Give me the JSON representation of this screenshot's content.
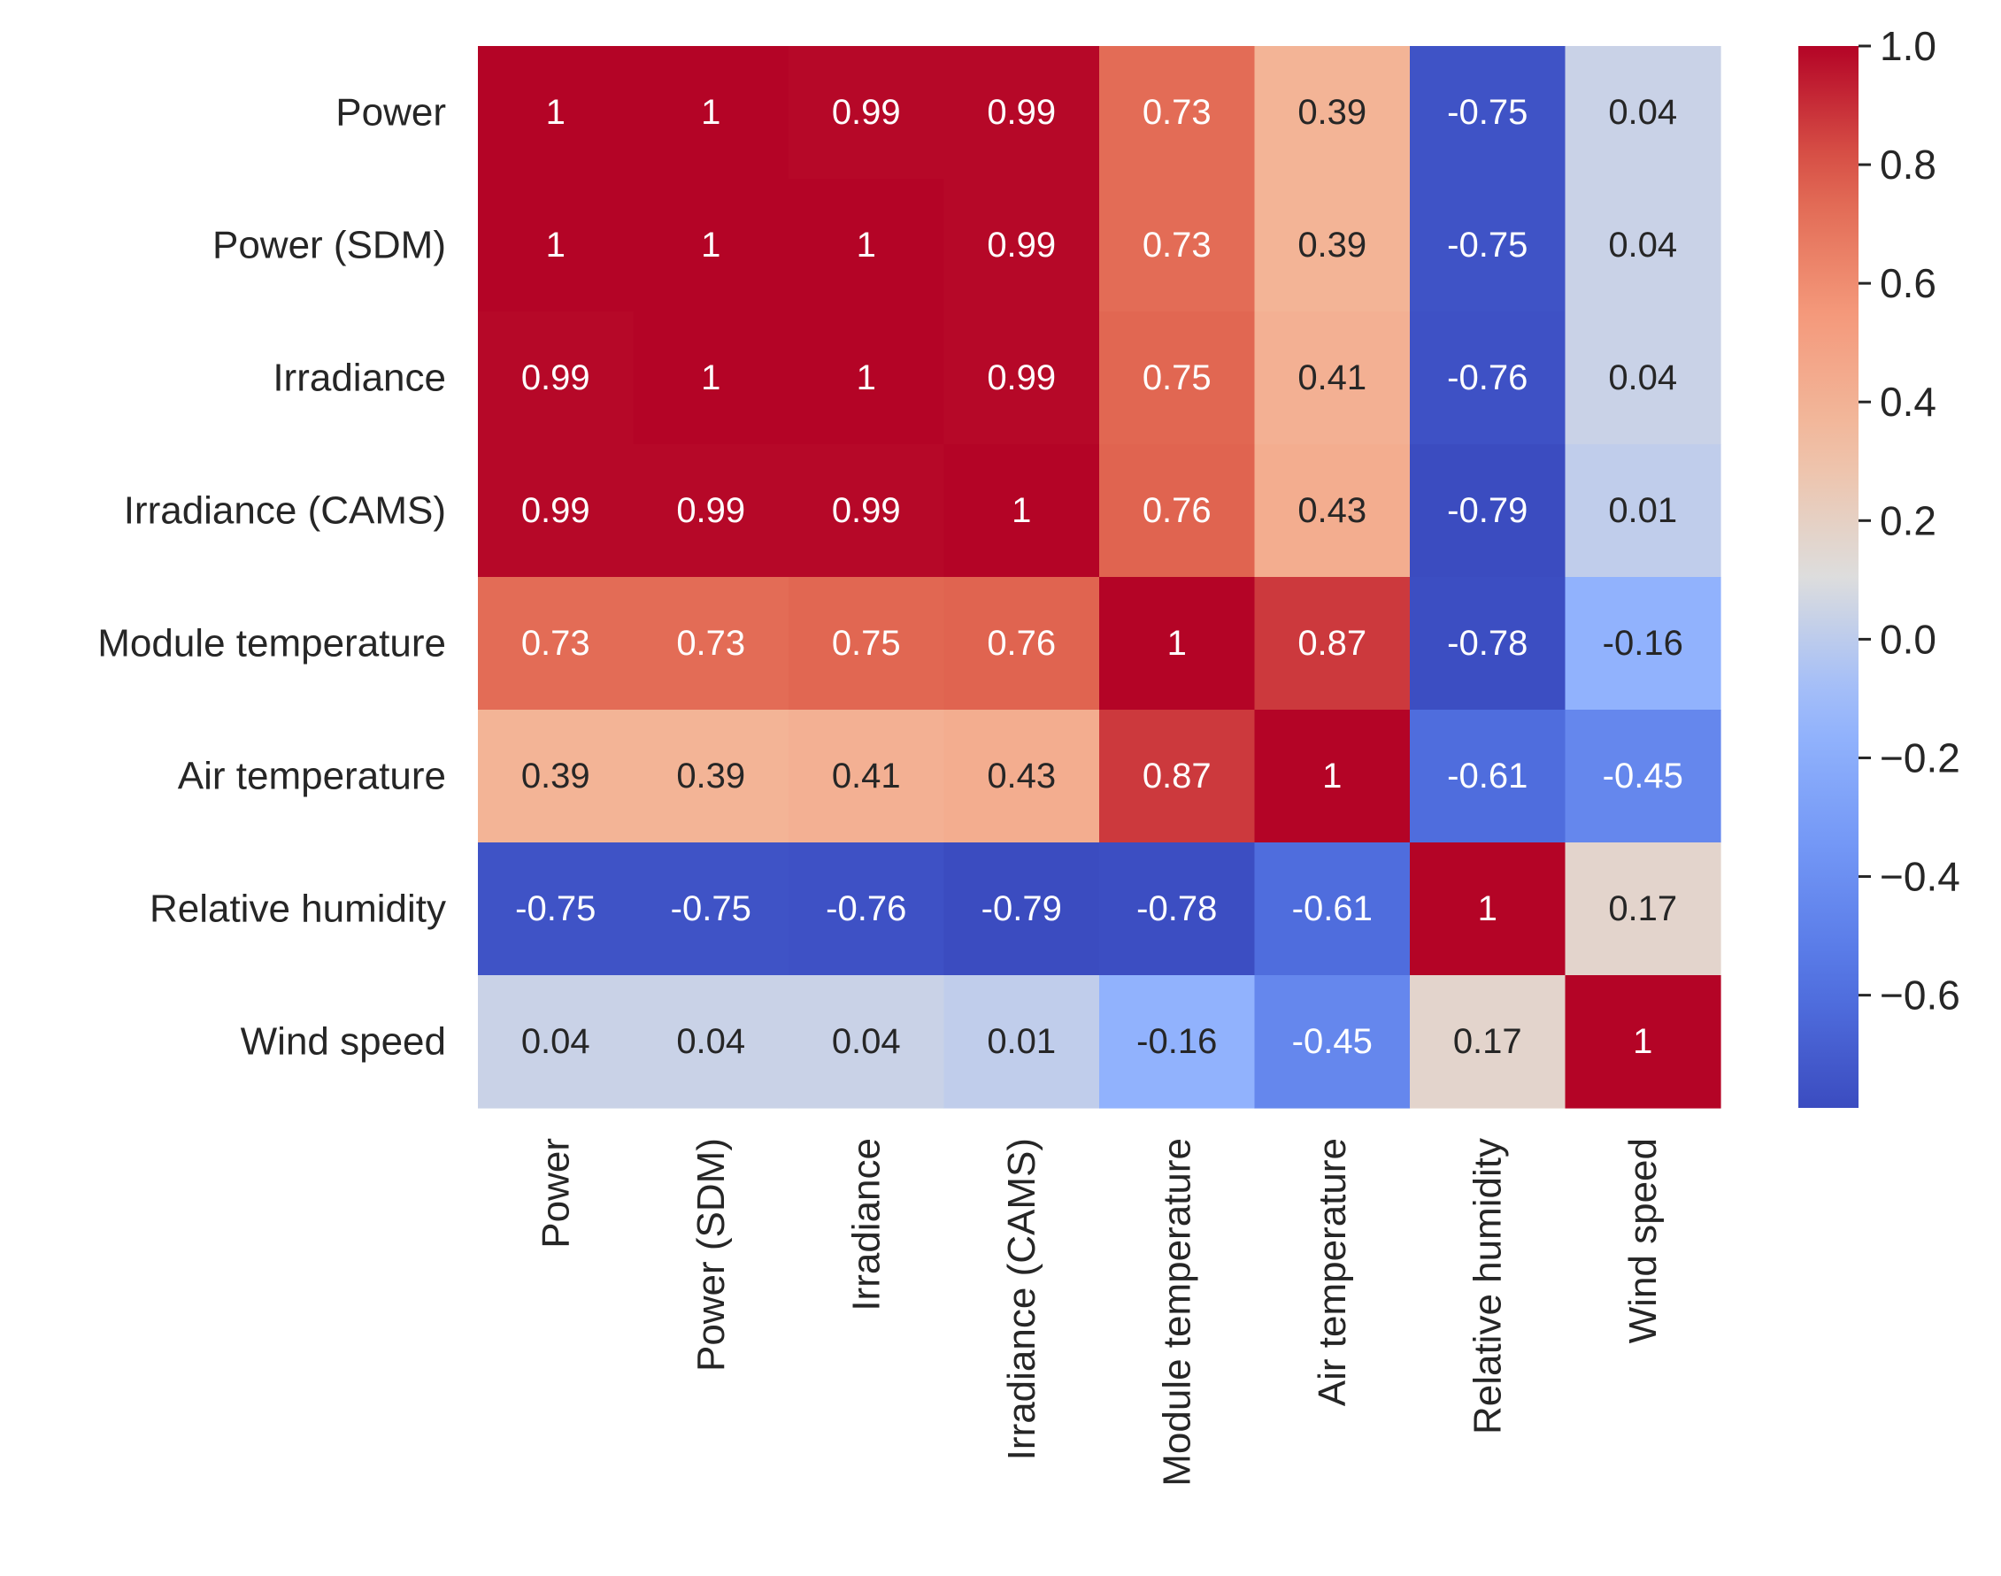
{
  "chart_data": {
    "type": "heatmap",
    "title": "",
    "xlabel": "",
    "ylabel": "",
    "labels": [
      "Power",
      "Power (SDM)",
      "Irradiance",
      "Irradiance (CAMS)",
      "Module temperature",
      "Air temperature",
      "Relative humidity",
      "Wind speed"
    ],
    "values": [
      [
        1,
        1,
        0.99,
        0.99,
        0.73,
        0.39,
        -0.75,
        0.04
      ],
      [
        1,
        1,
        1,
        0.99,
        0.73,
        0.39,
        -0.75,
        0.04
      ],
      [
        0.99,
        1,
        1,
        0.99,
        0.75,
        0.41,
        -0.76,
        0.04
      ],
      [
        0.99,
        0.99,
        0.99,
        1,
        0.76,
        0.43,
        -0.79,
        0.01
      ],
      [
        0.73,
        0.73,
        0.75,
        0.76,
        1,
        0.87,
        -0.78,
        -0.16
      ],
      [
        0.39,
        0.39,
        0.41,
        0.43,
        0.87,
        1,
        -0.61,
        -0.45
      ],
      [
        -0.75,
        -0.75,
        -0.76,
        -0.79,
        -0.78,
        -0.61,
        1,
        0.17
      ],
      [
        0.04,
        0.04,
        0.04,
        0.01,
        -0.16,
        -0.45,
        0.17,
        1
      ]
    ],
    "colormap": "coolwarm",
    "colorbar": {
      "range": [
        -0.79,
        1.0
      ],
      "ticks": [
        1.0,
        0.8,
        0.6,
        0.4,
        0.2,
        0.0,
        -0.2,
        -0.4,
        -0.6
      ],
      "tick_labels": [
        "1.0",
        "0.8",
        "0.6",
        "0.4",
        "0.2",
        "0.0",
        "−0.2",
        "−0.4",
        "−0.6"
      ]
    },
    "annotations": true
  }
}
